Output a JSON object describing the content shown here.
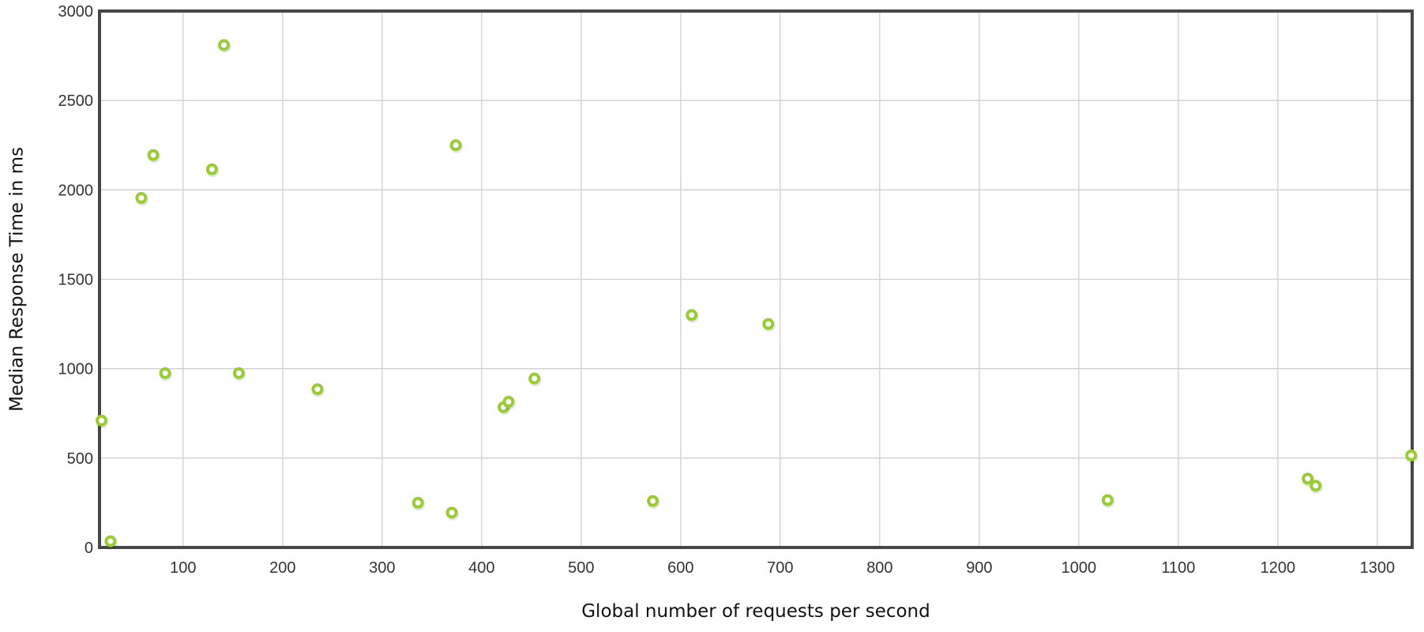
{
  "chart_data": {
    "type": "scatter",
    "xlabel": "Global number of requests per second",
    "ylabel": "Median Response Time in ms",
    "xlim": [
      16,
      1335
    ],
    "ylim": [
      0,
      3000
    ],
    "x_ticks": [
      100,
      200,
      300,
      400,
      500,
      600,
      700,
      800,
      900,
      1000,
      1100,
      1200,
      1300
    ],
    "y_ticks": [
      0,
      500,
      1000,
      1500,
      2000,
      2500,
      3000
    ],
    "grid": true,
    "legend": "none",
    "series": [
      {
        "color": "#99cc33",
        "points": [
          {
            "x": 18,
            "y": 710
          },
          {
            "x": 27,
            "y": 35
          },
          {
            "x": 58,
            "y": 1955
          },
          {
            "x": 70,
            "y": 2195
          },
          {
            "x": 82,
            "y": 975
          },
          {
            "x": 129,
            "y": 2115
          },
          {
            "x": 141,
            "y": 2810
          },
          {
            "x": 156,
            "y": 975
          },
          {
            "x": 235,
            "y": 885
          },
          {
            "x": 336,
            "y": 250
          },
          {
            "x": 370,
            "y": 195
          },
          {
            "x": 374,
            "y": 2250
          },
          {
            "x": 422,
            "y": 785
          },
          {
            "x": 427,
            "y": 815
          },
          {
            "x": 453,
            "y": 945
          },
          {
            "x": 572,
            "y": 260
          },
          {
            "x": 611,
            "y": 1300
          },
          {
            "x": 688,
            "y": 1250
          },
          {
            "x": 1029,
            "y": 265
          },
          {
            "x": 1230,
            "y": 385
          },
          {
            "x": 1238,
            "y": 345
          },
          {
            "x": 1334,
            "y": 515
          }
        ]
      }
    ]
  },
  "colors": {
    "point": "#99cc33",
    "frame": "#474747",
    "grid": "#cfcfcf"
  }
}
